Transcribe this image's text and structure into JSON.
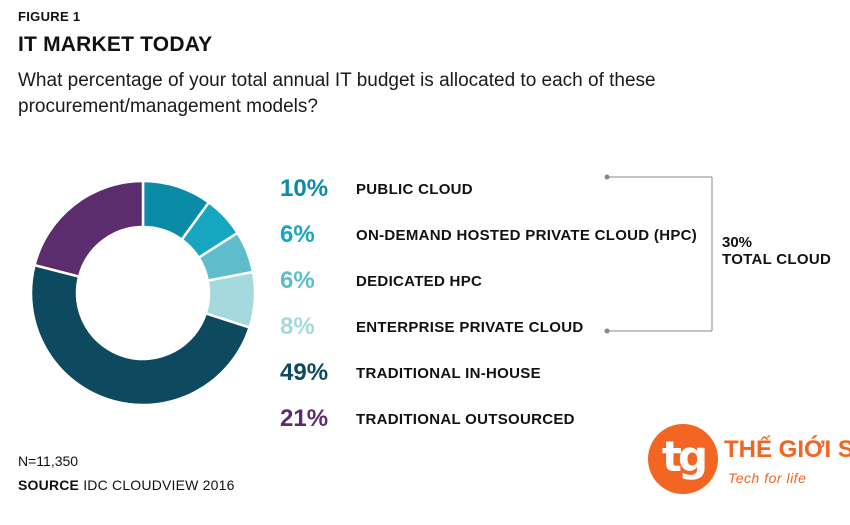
{
  "figure_label": "FIGURE 1",
  "title": "IT MARKET TODAY",
  "subtitle": "What percentage of your total annual IT budget is allocated to each of these procurement/management models?",
  "chart_data": {
    "type": "pie",
    "variant": "donut",
    "title": "IT MARKET TODAY",
    "categories": [
      "PUBLIC CLOUD",
      "ON-DEMAND HOSTED PRIVATE CLOUD (HPC)",
      "DEDICATED HPC",
      "ENTERPRISE PRIVATE CLOUD",
      "TRADITIONAL IN-HOUSE",
      "TRADITIONAL OUTSOURCED"
    ],
    "values": [
      10,
      6,
      6,
      8,
      49,
      21
    ],
    "labels": [
      "10%",
      "6%",
      "6%",
      "8%",
      "49%",
      "21%"
    ],
    "colors": [
      "#0a8ba6",
      "#16a6bf",
      "#5fbccb",
      "#a6d9de",
      "#0d4a5f",
      "#5b2d6e"
    ],
    "legend_placement": "right"
  },
  "bracket": {
    "pct": "30%",
    "label": "TOTAL CLOUD"
  },
  "footnote": {
    "n": "N=11,350",
    "source_label": "SOURCE",
    "source_text": "IDC CLOUDVIEW 2016"
  },
  "logo": {
    "letters": "tg",
    "name": "THẾ GIỚI SỐ",
    "tagline": "Tech for life",
    "color": "#f26522"
  }
}
